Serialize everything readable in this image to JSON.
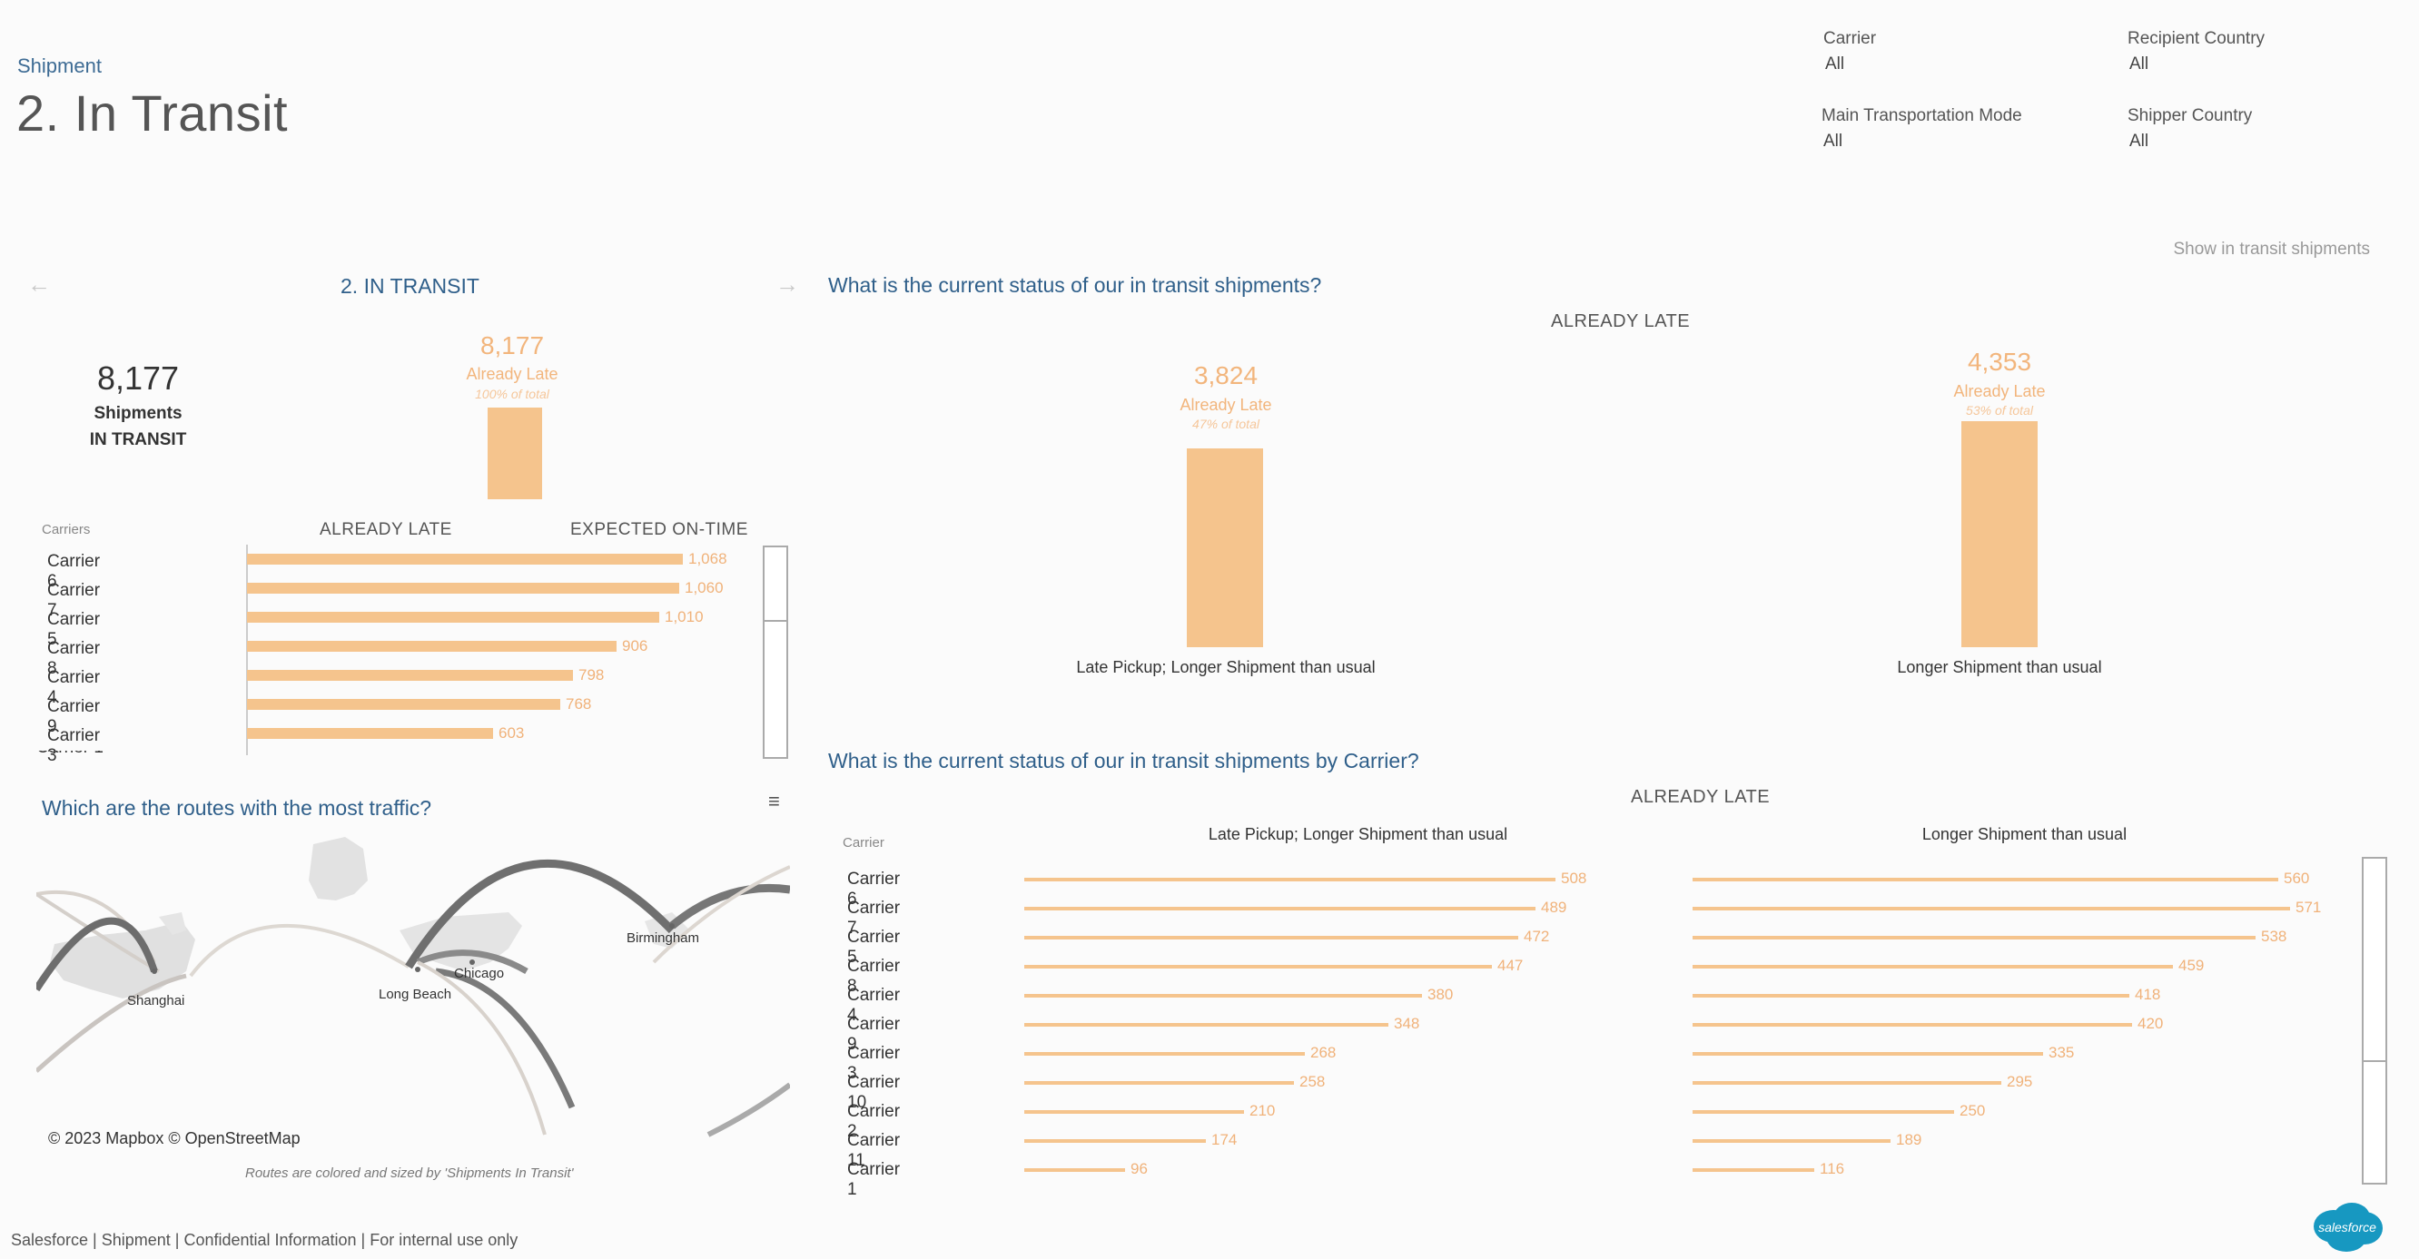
{
  "header": {
    "breadcrumb": "Shipment",
    "title": "2. In Transit"
  },
  "filters": [
    {
      "label": "Carrier",
      "value": "All"
    },
    {
      "label": "Recipient Country",
      "value": "All"
    },
    {
      "label": "Main Transportation Mode",
      "value": "All"
    },
    {
      "label": "Shipper Country",
      "value": "All"
    }
  ],
  "show_transit_label": "Show in transit shipments",
  "left_panel": {
    "title": "2. IN TRANSIT",
    "kpi_value": "8,177",
    "kpi_line1": "Shipments",
    "kpi_line2": "IN TRANSIT",
    "late_value": "8,177",
    "late_label": "Already Late",
    "late_pct": "100% of total",
    "carriers_header": "Carriers",
    "col_late": "ALREADY LATE",
    "col_ontime": "EXPECTED ON-TIME",
    "carriers": [
      {
        "name": "Carrier 6",
        "value": "1,068",
        "num": 1068
      },
      {
        "name": "Carrier 7",
        "value": "1,060",
        "num": 1060
      },
      {
        "name": "Carrier 5",
        "value": "1,010",
        "num": 1010
      },
      {
        "name": "Carrier 8",
        "value": "906",
        "num": 906
      },
      {
        "name": "Carrier 4",
        "value": "798",
        "num": 798
      },
      {
        "name": "Carrier 9",
        "value": "768",
        "num": 768
      },
      {
        "name": "Carrier 3",
        "value": "603",
        "num": 603
      }
    ]
  },
  "map": {
    "title": "Which are the routes with the most traffic?",
    "cities": [
      "Shanghai",
      "Long Beach",
      "Chicago",
      "Birmingham"
    ],
    "attribution": "© 2023 Mapbox © OpenStreetMap",
    "caption": "Routes are colored and sized by 'Shipments In Transit'"
  },
  "status": {
    "title": "What is the current status of our in transit shipments?",
    "header": "ALREADY LATE",
    "bars": [
      {
        "value": "3,824",
        "label": "Already Late",
        "pct": "47% of total",
        "category": "Late Pickup; Longer Shipment than usual",
        "num": 3824
      },
      {
        "value": "4,353",
        "label": "Already Late",
        "pct": "53% of total",
        "category": "Longer Shipment than usual",
        "num": 4353
      }
    ]
  },
  "by_carrier": {
    "title": "What is the current status of our in transit shipments by Carrier?",
    "header": "ALREADY LATE",
    "carrier_header": "Carrier",
    "col1": "Late Pickup; Longer Shipment than usual",
    "col2": "Longer Shipment than usual",
    "rows": [
      {
        "name": "Carrier 6",
        "a": 508,
        "b": 560
      },
      {
        "name": "Carrier 7",
        "a": 489,
        "b": 571
      },
      {
        "name": "Carrier 5",
        "a": 472,
        "b": 538
      },
      {
        "name": "Carrier 8",
        "a": 447,
        "b": 459
      },
      {
        "name": "Carrier 4",
        "a": 380,
        "b": 418
      },
      {
        "name": "Carrier 9",
        "a": 348,
        "b": 420
      },
      {
        "name": "Carrier 3",
        "a": 268,
        "b": 335
      },
      {
        "name": "Carrier 10",
        "a": 258,
        "b": 295
      },
      {
        "name": "Carrier 2",
        "a": 210,
        "b": 250
      },
      {
        "name": "Carrier 11",
        "a": 174,
        "b": 189
      },
      {
        "name": "Carrier 1",
        "a": 96,
        "b": 116
      }
    ]
  },
  "footer": "Salesforce | Shipment | Confidential Information | For internal use only",
  "logo_text": "salesforce",
  "colors": {
    "accent": "#f5c48d",
    "title_blue": "#2f5f8a",
    "logo_blue": "#1798c1"
  }
}
